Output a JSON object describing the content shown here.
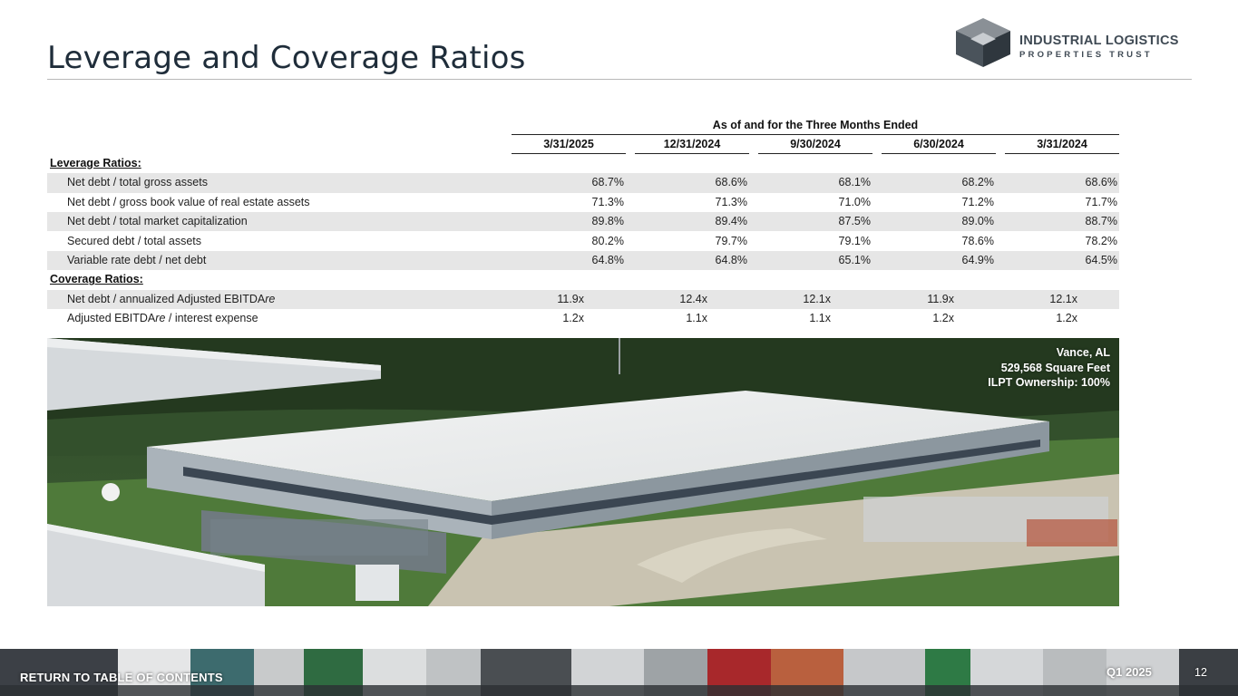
{
  "page": {
    "title": "Leverage and Coverage Ratios"
  },
  "brand": {
    "name_line1": "INDUSTRIAL LOGISTICS",
    "name_line2": "PROPERTIES TRUST",
    "accent": "#3f4a54"
  },
  "table": {
    "group_header": "As of and for the Three Months Ended",
    "columns": [
      "3/31/2025",
      "12/31/2024",
      "9/30/2024",
      "6/30/2024",
      "3/31/2024"
    ],
    "rows": [
      {
        "type": "section",
        "label": "Leverage Ratios:"
      },
      {
        "type": "data",
        "label": "Net debt / total gross assets",
        "values": [
          "68.7%",
          "68.6%",
          "68.1%",
          "68.2%",
          "68.6%"
        ],
        "shaded": true
      },
      {
        "type": "data",
        "label": "Net debt / gross book value of real estate assets",
        "values": [
          "71.3%",
          "71.3%",
          "71.0%",
          "71.2%",
          "71.7%"
        ],
        "shaded": false
      },
      {
        "type": "data",
        "label": "Net debt / total market capitalization",
        "values": [
          "89.8%",
          "89.4%",
          "87.5%",
          "89.0%",
          "88.7%"
        ],
        "shaded": true
      },
      {
        "type": "data",
        "label": "Secured debt / total assets",
        "values": [
          "80.2%",
          "79.7%",
          "79.1%",
          "78.6%",
          "78.2%"
        ],
        "shaded": false
      },
      {
        "type": "data",
        "label": "Variable rate debt / net debt",
        "values": [
          "64.8%",
          "64.8%",
          "65.1%",
          "64.9%",
          "64.5%"
        ],
        "shaded": true
      },
      {
        "type": "section",
        "label": "Coverage Ratios:"
      },
      {
        "type": "data",
        "label": "Net debt / annualized Adjusted EBITDAre",
        "values": [
          "11.9x",
          "12.4x",
          "12.1x",
          "11.9x",
          "12.1x"
        ],
        "shaded": true
      },
      {
        "type": "data",
        "label": "Adjusted EBITDAre / interest expense",
        "values": [
          "1.2x",
          "1.1x",
          "1.1x",
          "1.2x",
          "1.2x"
        ],
        "shaded": false
      }
    ]
  },
  "photo": {
    "caption_line1": "Vance, AL",
    "caption_line2": "529,568 Square Feet",
    "caption_line3": "ILPT Ownership: 100%"
  },
  "footer": {
    "return_link": "RETURN TO TABLE OF CONTENTS",
    "quarter": "Q1 2025",
    "page_number": "12"
  }
}
